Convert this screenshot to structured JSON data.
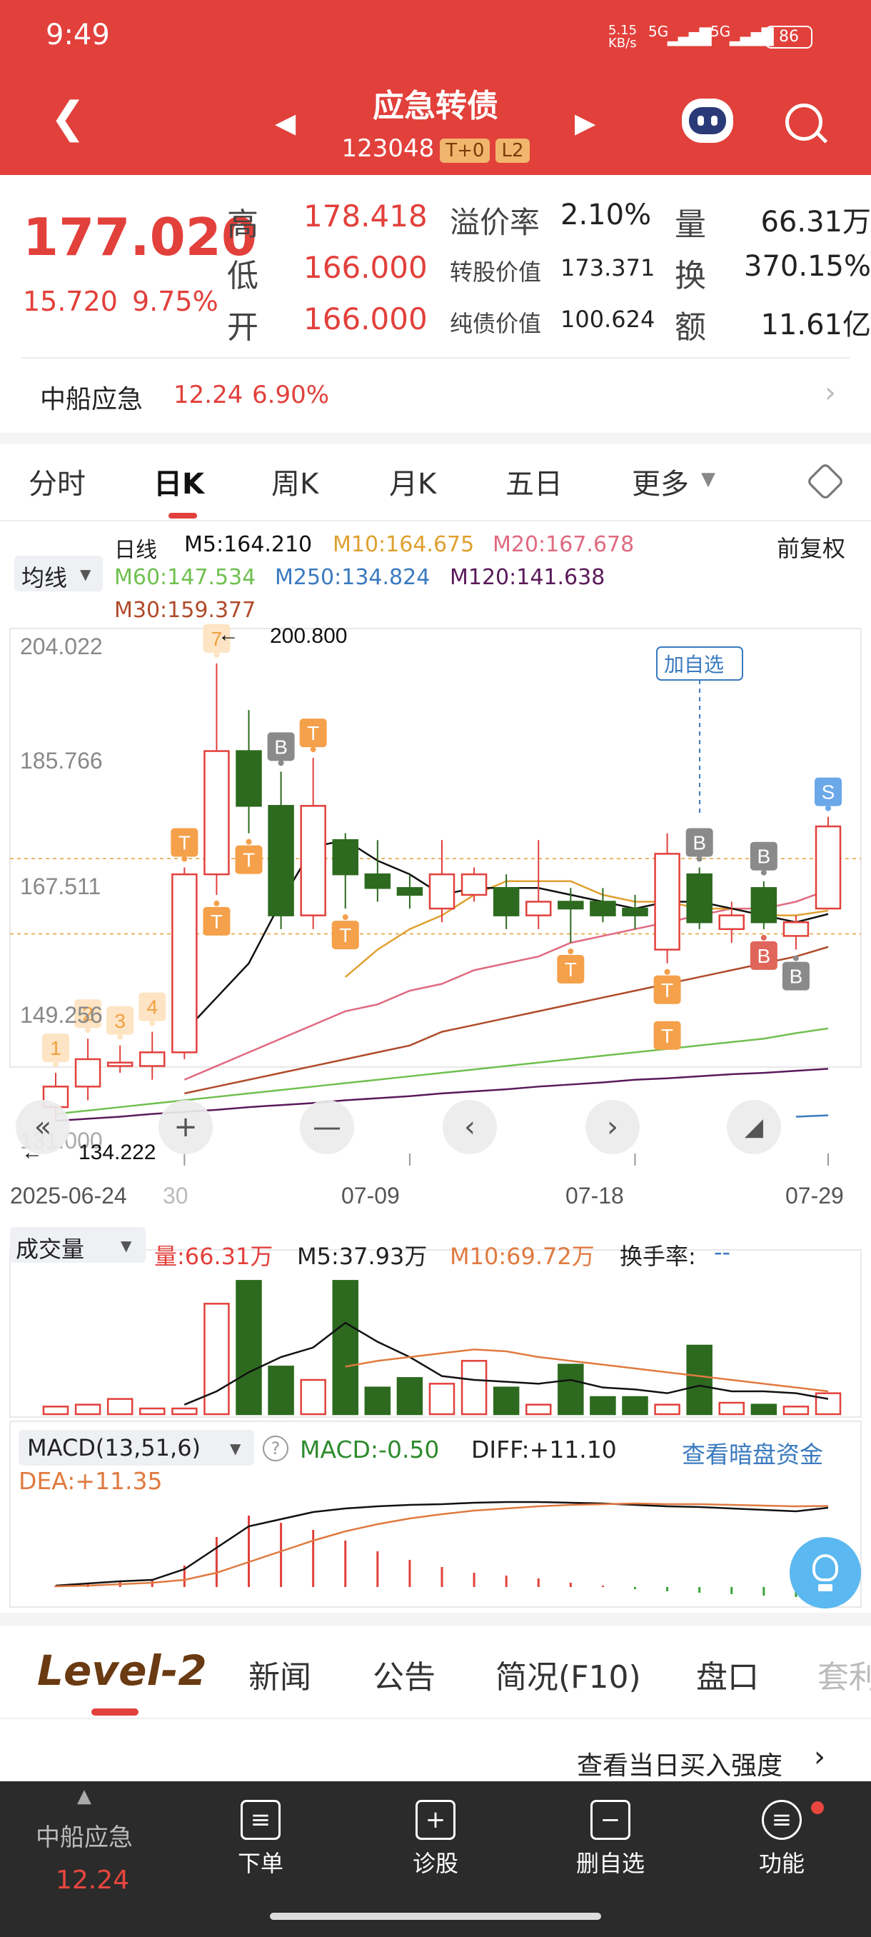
{
  "status_bar": {
    "time": "9:49",
    "net_speed": "5.15\nKB/s",
    "signal1": "5G",
    "signal2": "5G",
    "battery": "86"
  },
  "header": {
    "title": "应急转债",
    "code": "123048",
    "badge1": "T+0",
    "badge2": "L2"
  },
  "quote": {
    "price": "177.020",
    "change": "15.720",
    "change_pct": "9.75%",
    "high_label": "高",
    "high": "178.418",
    "low_label": "低",
    "low": "166.000",
    "open_label": "开",
    "open": "166.000",
    "premium_label": "溢价率",
    "premium": "2.10%",
    "conv_value_label": "转股价值",
    "conv_value": "173.371",
    "bond_value_label": "纯债价值",
    "bond_value": "100.624",
    "vol_label": "量",
    "vol": "66.31万",
    "turnover_label": "换",
    "turnover": "370.15%",
    "amount_label": "额",
    "amount": "11.61亿"
  },
  "underlying": {
    "name": "中船应急",
    "price": "12.24",
    "pct": "6.90%"
  },
  "tabs": [
    "分时",
    "日K",
    "周K",
    "月K",
    "五日",
    "更多"
  ],
  "ma_legend": {
    "selector": "均线",
    "period": "日线",
    "adj": "前复权",
    "m5": "M5:164.210",
    "m10": "M10:164.675",
    "m20": "M20:167.678",
    "m60": "M60:147.534",
    "m250": "M250:134.824",
    "m120": "M120:141.638",
    "m30": "M30:159.377"
  },
  "colors": {
    "red": "#e2403b",
    "green": "#2d6a1f",
    "m5": "#111111",
    "m10": "#e0a030",
    "m20": "#e06a80",
    "m30": "#b04a2a",
    "m60": "#70c050",
    "m120": "#5a1a5a",
    "m250": "#3a7abf",
    "orange": "#f5a04a"
  },
  "kchart": {
    "y_labels": [
      "204.022",
      "185.766",
      "167.511",
      "149.256",
      "131.000"
    ],
    "max_label": "200.800",
    "min_label": "134.222",
    "x_labels": [
      "2025-06-24",
      "30",
      "07-09",
      "07-18",
      "07-29"
    ],
    "add_watch": "加自选"
  },
  "chart_data": {
    "type": "candlestick",
    "ylim": [
      131.0,
      204.022
    ],
    "candles": [
      {
        "o": 136,
        "c": 139,
        "h": 141,
        "l": 134.2
      },
      {
        "o": 139,
        "c": 143,
        "h": 146,
        "l": 137
      },
      {
        "o": 142,
        "c": 142.5,
        "h": 145,
        "l": 141
      },
      {
        "o": 142,
        "c": 144,
        "h": 147,
        "l": 140
      },
      {
        "o": 144,
        "c": 170,
        "h": 171,
        "l": 143
      },
      {
        "o": 170,
        "c": 188,
        "h": 200.8,
        "l": 167
      },
      {
        "o": 188,
        "c": 180,
        "h": 194,
        "l": 176
      },
      {
        "o": 180,
        "c": 164,
        "h": 185,
        "l": 162
      },
      {
        "o": 164,
        "c": 180,
        "h": 187,
        "l": 162
      },
      {
        "o": 175,
        "c": 170,
        "h": 176,
        "l": 165
      },
      {
        "o": 170,
        "c": 168,
        "h": 175,
        "l": 166
      },
      {
        "o": 168,
        "c": 167,
        "h": 170,
        "l": 165
      },
      {
        "o": 165,
        "c": 170,
        "h": 175,
        "l": 163
      },
      {
        "o": 167,
        "c": 170,
        "h": 171,
        "l": 166
      },
      {
        "o": 168,
        "c": 164,
        "h": 170,
        "l": 162
      },
      {
        "o": 164,
        "c": 166,
        "h": 175,
        "l": 162
      },
      {
        "o": 166,
        "c": 165,
        "h": 168,
        "l": 160
      },
      {
        "o": 166,
        "c": 164,
        "h": 168,
        "l": 163
      },
      {
        "o": 165,
        "c": 164,
        "h": 167,
        "l": 162
      },
      {
        "o": 159,
        "c": 173,
        "h": 176,
        "l": 157
      },
      {
        "o": 170,
        "c": 163,
        "h": 171,
        "l": 162
      },
      {
        "o": 162,
        "c": 164,
        "h": 166,
        "l": 160
      },
      {
        "o": 168,
        "c": 163,
        "h": 169,
        "l": 162
      },
      {
        "o": 161,
        "c": 163,
        "h": 164,
        "l": 159
      },
      {
        "o": 165,
        "c": 177,
        "h": 178.4,
        "l": 165
      }
    ],
    "ma5": [
      null,
      null,
      null,
      null,
      147,
      152,
      157,
      166,
      174,
      175,
      172,
      170,
      167,
      168,
      168,
      168,
      167,
      166,
      165,
      166,
      166,
      165,
      164,
      163,
      164.2
    ],
    "ma10": [
      null,
      null,
      null,
      null,
      null,
      null,
      null,
      null,
      null,
      155,
      159,
      162,
      164,
      167,
      169,
      169,
      169,
      167,
      166,
      166,
      165,
      165,
      164,
      164,
      164.7
    ],
    "ma20": [
      null,
      null,
      null,
      null,
      140,
      142,
      144,
      146,
      148,
      150,
      151,
      153,
      154,
      156,
      157,
      158,
      160,
      161,
      162,
      163,
      164,
      165,
      165,
      166,
      167.7
    ],
    "ma30": [
      null,
      null,
      null,
      null,
      138,
      139,
      140,
      141,
      142,
      143,
      144,
      145,
      147,
      148,
      149,
      150,
      151,
      152,
      153,
      154,
      155,
      156,
      157,
      158,
      159.4
    ],
    "ma60": [
      135,
      135.5,
      136,
      136.5,
      137,
      137.5,
      138,
      138.5,
      139,
      139.5,
      140,
      140.5,
      141,
      141.5,
      142,
      142.5,
      143,
      143.5,
      144,
      144.5,
      145,
      145.5,
      146,
      146.8,
      147.5
    ],
    "ma120": [
      134,
      134.3,
      134.6,
      135,
      135.3,
      135.6,
      136,
      136.3,
      136.6,
      137,
      137.3,
      137.6,
      138,
      138.3,
      138.6,
      139,
      139.3,
      139.6,
      140,
      140.2,
      140.5,
      140.8,
      141,
      141.3,
      141.6
    ],
    "ma250": [
      null,
      null,
      null,
      null,
      null,
      null,
      null,
      null,
      null,
      null,
      null,
      null,
      null,
      null,
      null,
      null,
      null,
      null,
      null,
      null,
      null,
      null,
      null,
      134.6,
      134.8
    ],
    "volume": [
      4,
      5,
      8,
      3,
      3,
      58,
      70,
      25,
      18,
      70,
      14,
      19,
      16,
      28,
      14,
      5,
      26,
      9,
      9,
      5,
      36,
      6,
      5,
      4,
      11
    ],
    "vol_ma5": [
      null,
      null,
      null,
      null,
      5,
      12,
      22,
      30,
      35,
      48,
      38,
      30,
      20,
      18,
      17,
      16,
      18,
      14,
      13,
      11,
      15,
      12,
      12,
      11,
      8
    ],
    "vol_ma10": [
      null,
      null,
      null,
      null,
      null,
      null,
      null,
      null,
      null,
      25,
      28,
      30,
      32,
      34,
      33,
      30,
      28,
      26,
      24,
      22,
      20,
      18,
      16,
      14,
      12
    ],
    "macd_diff": [
      0.2,
      0.5,
      0.8,
      1.0,
      2.5,
      5.5,
      8.5,
      9.5,
      10.5,
      11,
      11.3,
      11.5,
      11.6,
      11.8,
      11.9,
      11.9,
      11.8,
      11.7,
      11.5,
      11.3,
      11.2,
      11.0,
      10.8,
      10.6,
      11.1
    ],
    "macd_dea": [
      0.1,
      0.2,
      0.4,
      0.6,
      1.0,
      2.0,
      3.5,
      5.0,
      6.5,
      7.8,
      8.8,
      9.6,
      10.2,
      10.7,
      11.0,
      11.3,
      11.5,
      11.6,
      11.7,
      11.6,
      11.6,
      11.5,
      11.4,
      11.3,
      11.35
    ],
    "macd_hist": [
      0.2,
      0.5,
      0.8,
      0.9,
      3.0,
      7.0,
      10.0,
      9.0,
      8.0,
      6.5,
      5.0,
      3.8,
      2.8,
      2.0,
      1.6,
      1.2,
      0.6,
      0.2,
      -0.3,
      -0.6,
      -0.8,
      -1.0,
      -1.2,
      -1.4,
      -0.5
    ]
  },
  "markers": [
    {
      "i": 0,
      "t": "1",
      "pos": "above"
    },
    {
      "i": 1,
      "t": "2",
      "pos": "above"
    },
    {
      "i": 2,
      "t": "3",
      "pos": "above"
    },
    {
      "i": 3,
      "t": "4",
      "pos": "above"
    },
    {
      "i": 4,
      "t": "T",
      "pos": "above"
    },
    {
      "i": 5,
      "t": "7",
      "pos": "above"
    },
    {
      "i": 5,
      "t": "T",
      "pos": "below"
    },
    {
      "i": 6,
      "t": "T",
      "pos": "below"
    },
    {
      "i": 7,
      "t": "B",
      "pos": "above",
      "style": "gray"
    },
    {
      "i": 8,
      "t": "T",
      "pos": "above"
    },
    {
      "i": 9,
      "t": "T",
      "pos": "below"
    },
    {
      "i": 16,
      "t": "T",
      "pos": "below"
    },
    {
      "i": 19,
      "t": "T",
      "pos": "below"
    },
    {
      "i": 19,
      "t": "T",
      "pos": "below2"
    },
    {
      "i": 20,
      "t": "B",
      "pos": "above",
      "style": "gray"
    },
    {
      "i": 22,
      "t": "B",
      "pos": "below",
      "style": "red"
    },
    {
      "i": 22,
      "t": "B",
      "pos": "above",
      "style": "gray"
    },
    {
      "i": 23,
      "t": "B",
      "pos": "below",
      "style": "gray"
    },
    {
      "i": 24,
      "t": "S",
      "pos": "above",
      "style": "blue"
    }
  ],
  "volume_legend": {
    "selector": "成交量",
    "vol": "量:66.31万",
    "m5": "M5:37.93万",
    "m10": "M10:69.72万",
    "turnover": "换手率:",
    "turnover_val": "--"
  },
  "macd_legend": {
    "selector": "MACD(13,51,6)",
    "macd": "MACD:-0.50",
    "diff": "DIFF:+11.10",
    "dark_pool": "查看暗盘资金",
    "dea": "DEA:+11.35"
  },
  "bottom_tabs": {
    "level2": "Level-2",
    "news": "新闻",
    "notice": "公告",
    "f10": "简况(F10)",
    "book": "盘口",
    "more": "套利"
  },
  "buy_strength": "查看当日买入强度",
  "bottom_nav": {
    "stock": "中船应急",
    "stock_price": "12.24",
    "order": "下单",
    "diagnose": "诊股",
    "remove": "删自选",
    "func": "功能"
  }
}
